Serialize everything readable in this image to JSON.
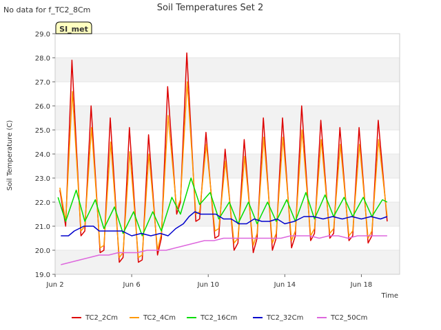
{
  "chart_data": {
    "type": "line",
    "title": "Soil Temperatures Set 2",
    "note": "No data for f_TC2_8Cm",
    "badge": "SI_met",
    "xlabel": "Time",
    "ylabel": "Soil Temperature (C)",
    "xlim": [
      2.0,
      20.0
    ],
    "ylim": [
      19.0,
      29.0
    ],
    "yticks": [
      "19.0",
      "20.0",
      "21.0",
      "22.0",
      "23.0",
      "24.0",
      "25.0",
      "26.0",
      "27.0",
      "28.0",
      "29.0"
    ],
    "xticks": [
      {
        "value": 2,
        "label": "Jun 2"
      },
      {
        "value": 6,
        "label": "Jun 6"
      },
      {
        "value": 10,
        "label": "Jun 10"
      },
      {
        "value": 14,
        "label": "Jun 14"
      },
      {
        "value": 18,
        "label": "Jun 18"
      }
    ],
    "grid_bands": true,
    "legend_position": "bottom",
    "series": [
      {
        "name": "TC2_2Cm",
        "color": "#dd0000",
        "x": [
          2.25,
          2.55,
          2.88,
          3.35,
          3.55,
          3.88,
          4.35,
          4.55,
          4.88,
          5.35,
          5.55,
          5.88,
          6.35,
          6.55,
          6.88,
          7.35,
          7.55,
          7.88,
          8.35,
          8.55,
          8.88,
          9.35,
          9.55,
          9.88,
          10.35,
          10.55,
          10.88,
          11.35,
          11.55,
          11.88,
          12.35,
          12.55,
          12.88,
          13.35,
          13.55,
          13.88,
          14.35,
          14.55,
          14.88,
          15.35,
          15.55,
          15.88,
          16.35,
          16.55,
          16.88,
          17.35,
          17.55,
          17.88,
          18.35,
          18.55,
          18.88,
          19.35
        ],
        "y": [
          22.5,
          21.0,
          27.9,
          20.6,
          20.8,
          26.0,
          19.9,
          20.0,
          25.5,
          19.5,
          19.7,
          25.1,
          19.5,
          19.6,
          24.8,
          19.8,
          20.5,
          26.8,
          21.5,
          22.0,
          28.2,
          21.2,
          21.3,
          24.9,
          20.5,
          20.6,
          24.2,
          20.0,
          20.3,
          24.6,
          19.9,
          20.5,
          25.5,
          20.0,
          20.5,
          25.5,
          20.1,
          20.6,
          26.0,
          20.4,
          20.7,
          25.4,
          20.5,
          20.7,
          25.1,
          20.4,
          20.6,
          25.1,
          20.3,
          20.6,
          25.4,
          21.2
        ]
      },
      {
        "name": "TC2_4Cm",
        "color": "#ff9900",
        "x": [
          2.25,
          2.55,
          2.9,
          3.35,
          3.55,
          3.9,
          4.35,
          4.55,
          4.9,
          5.35,
          5.55,
          5.9,
          6.35,
          6.55,
          6.9,
          7.35,
          7.55,
          7.9,
          8.35,
          8.55,
          8.9,
          9.35,
          9.55,
          9.9,
          10.35,
          10.55,
          10.9,
          11.35,
          11.55,
          11.9,
          12.35,
          12.55,
          12.9,
          13.35,
          13.55,
          13.9,
          14.35,
          14.55,
          14.9,
          15.35,
          15.55,
          15.9,
          16.35,
          16.55,
          16.9,
          17.35,
          17.55,
          17.9,
          18.35,
          18.55,
          18.9,
          19.35
        ],
        "y": [
          22.6,
          21.2,
          26.6,
          20.8,
          21.0,
          25.1,
          20.1,
          20.2,
          24.5,
          19.7,
          19.9,
          24.1,
          19.7,
          19.8,
          24.0,
          20.0,
          20.7,
          25.6,
          21.7,
          22.1,
          27.0,
          21.5,
          21.6,
          24.4,
          20.8,
          20.9,
          23.7,
          20.3,
          20.5,
          23.9,
          20.2,
          20.7,
          24.7,
          20.3,
          20.7,
          24.7,
          20.4,
          20.8,
          25.0,
          20.6,
          20.9,
          24.6,
          20.7,
          20.9,
          24.4,
          20.6,
          20.8,
          24.4,
          20.5,
          20.8,
          24.6,
          21.4
        ]
      },
      {
        "name": "TC2_16Cm",
        "color": "#00dd00",
        "x": [
          2.15,
          2.55,
          3.1,
          3.55,
          4.1,
          4.55,
          5.1,
          5.55,
          6.1,
          6.55,
          7.1,
          7.55,
          8.1,
          8.55,
          9.1,
          9.55,
          10.1,
          10.55,
          11.1,
          11.55,
          12.1,
          12.55,
          13.1,
          13.55,
          14.1,
          14.55,
          15.1,
          15.55,
          16.1,
          16.55,
          17.1,
          17.55,
          18.1,
          18.55,
          19.1,
          19.35
        ],
        "y": [
          22.2,
          21.2,
          22.5,
          21.2,
          22.1,
          20.9,
          21.8,
          20.7,
          21.6,
          20.6,
          21.6,
          20.8,
          22.2,
          21.5,
          23.0,
          21.9,
          22.4,
          21.3,
          22.0,
          21.1,
          22.0,
          21.1,
          22.0,
          21.2,
          22.1,
          21.2,
          22.4,
          21.3,
          22.3,
          21.4,
          22.2,
          21.4,
          22.2,
          21.4,
          22.1,
          22.0
        ]
      },
      {
        "name": "TC2_32Cm",
        "color": "#0000cc",
        "x": [
          2.3,
          2.7,
          3.0,
          3.5,
          4.0,
          4.3,
          4.6,
          5.0,
          5.5,
          6.0,
          6.5,
          7.0,
          7.5,
          7.9,
          8.3,
          8.7,
          9.0,
          9.3,
          9.6,
          10.0,
          10.4,
          10.8,
          11.2,
          11.6,
          12.0,
          12.4,
          12.8,
          13.2,
          13.6,
          14.0,
          14.5,
          15.0,
          15.5,
          16.0,
          16.5,
          17.0,
          17.5,
          18.0,
          18.5,
          19.0,
          19.35
        ],
        "y": [
          20.6,
          20.6,
          20.8,
          21.0,
          21.0,
          20.8,
          20.8,
          20.8,
          20.8,
          20.6,
          20.7,
          20.6,
          20.7,
          20.6,
          20.9,
          21.1,
          21.4,
          21.6,
          21.5,
          21.5,
          21.5,
          21.3,
          21.3,
          21.1,
          21.1,
          21.3,
          21.2,
          21.2,
          21.3,
          21.1,
          21.2,
          21.4,
          21.4,
          21.3,
          21.4,
          21.3,
          21.4,
          21.3,
          21.4,
          21.3,
          21.4
        ]
      },
      {
        "name": "TC2_50Cm",
        "color": "#dd66dd",
        "x": [
          2.3,
          2.8,
          3.3,
          3.8,
          4.3,
          4.8,
          5.3,
          5.8,
          6.3,
          6.8,
          7.3,
          7.8,
          8.3,
          8.8,
          9.3,
          9.8,
          10.3,
          10.8,
          11.3,
          11.8,
          12.3,
          12.8,
          13.3,
          13.8,
          14.3,
          14.8,
          15.3,
          15.8,
          16.3,
          16.8,
          17.3,
          17.8,
          18.3,
          18.8,
          19.35
        ],
        "y": [
          19.4,
          19.5,
          19.6,
          19.7,
          19.8,
          19.8,
          19.9,
          19.9,
          19.9,
          20.0,
          20.0,
          20.0,
          20.1,
          20.2,
          20.3,
          20.4,
          20.4,
          20.5,
          20.5,
          20.5,
          20.5,
          20.5,
          20.5,
          20.5,
          20.6,
          20.6,
          20.6,
          20.5,
          20.6,
          20.6,
          20.5,
          20.6,
          20.6,
          20.6,
          20.6
        ]
      }
    ]
  }
}
